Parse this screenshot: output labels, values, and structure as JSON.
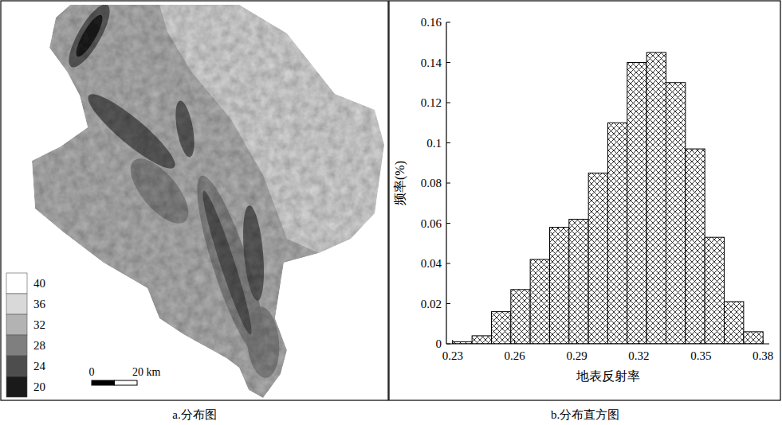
{
  "chart_data": [
    {
      "type": "map",
      "title": "a.分布图",
      "colorbar_values": [
        40,
        36,
        32,
        28,
        24,
        20
      ],
      "colors": [
        "#ffffff",
        "#d9d9d9",
        "#b3b3b3",
        "#7f7f7f",
        "#4d4d4d",
        "#1a1a1a"
      ],
      "scale_ticks": [
        0,
        {
          "value": 20,
          "label": "20 km"
        }
      ]
    },
    {
      "type": "histogram",
      "title": "b.分布直方图",
      "x_label": "地表反射率",
      "y_label": "频率(%)",
      "bins": [
        0.23,
        0.239375,
        0.24875,
        0.258125,
        0.2675,
        0.276875,
        0.28625,
        0.295625,
        0.305,
        0.314375,
        0.32375,
        0.333125,
        0.3425,
        0.351875,
        0.36125,
        0.370625,
        0.38
      ],
      "values": [
        0.001,
        0.004,
        0.016,
        0.027,
        0.042,
        0.058,
        0.062,
        0.085,
        0.11,
        0.14,
        0.145,
        0.13,
        0.097,
        0.053,
        0.021,
        0.006
      ],
      "xlim": [
        0.227,
        0.383
      ],
      "xticks": [
        0.23,
        0.26,
        0.29,
        0.32,
        0.35,
        0.38
      ],
      "ylim": [
        0,
        0.16
      ],
      "yticks": [
        0,
        0.02,
        0.04,
        0.06,
        0.08,
        0.1,
        0.12,
        0.14,
        0.16
      ],
      "grid": false
    }
  ]
}
